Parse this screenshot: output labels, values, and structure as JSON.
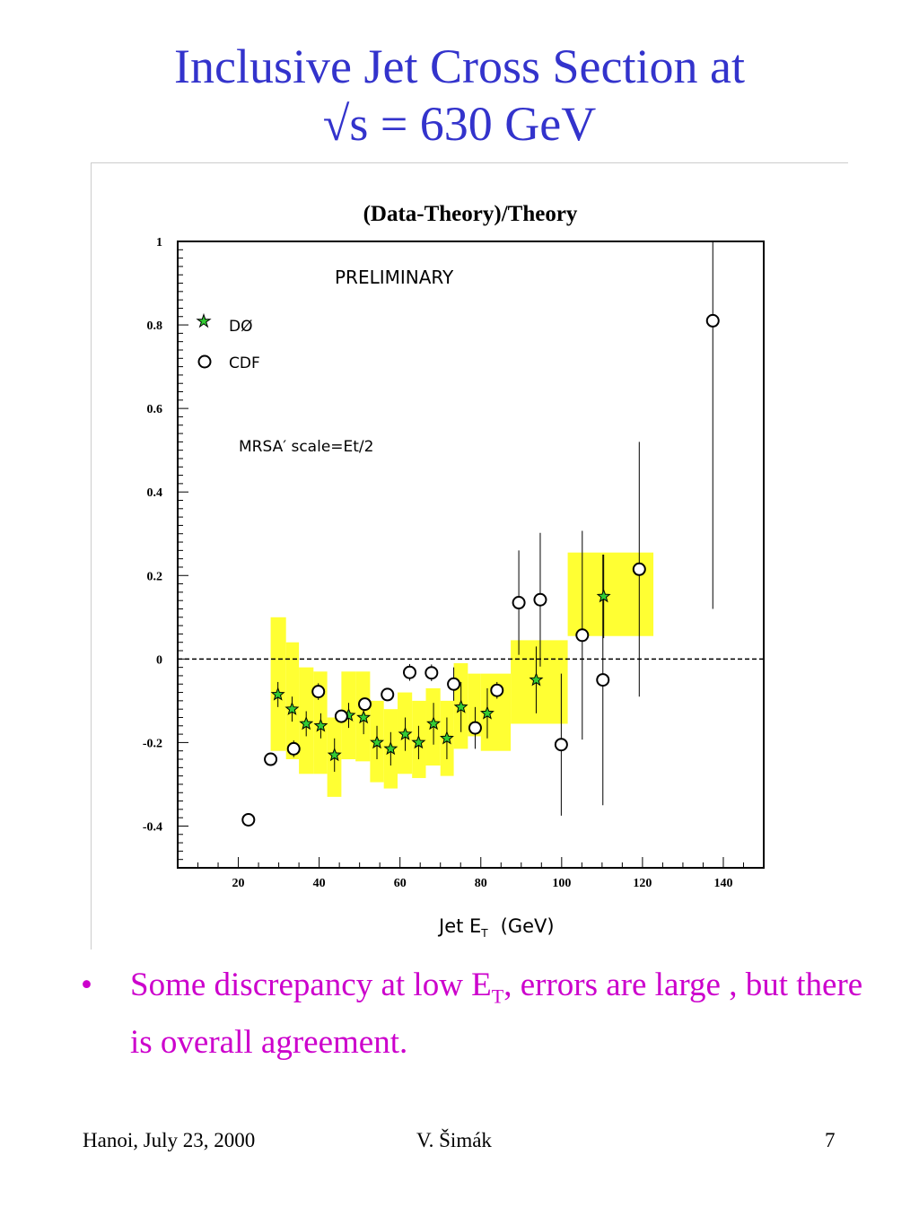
{
  "slide": {
    "title_line1": "Inclusive Jet Cross Section at",
    "title_line2": "√s = 630 GeV",
    "bullet_marker": "•",
    "bullet_text_a": "Some discrepancy at low E",
    "bullet_text_sub": "T",
    "bullet_text_b": ", errors are large , but there is overall agreement.",
    "footer_left": "Hanoi, July 23, 2000",
    "footer_center": "V. Šimák",
    "footer_right": "7"
  },
  "chart_data": {
    "type": "scatter",
    "title": "(Data-Theory)/Theory",
    "xlabel": "Jet E",
    "xlabel_sub": "T",
    "xlabel_unit": "(GeV)",
    "annotation_preliminary": "PRELIMINARY",
    "annotation_theory": "MRSA′ scale=Et/2",
    "xlim": [
      5,
      150
    ],
    "ylim": [
      -0.5,
      1.0
    ],
    "x_ticks": [
      20,
      40,
      60,
      80,
      100,
      120,
      140
    ],
    "y_ticks": [
      -0.4,
      -0.2,
      0,
      0.2,
      0.4,
      0.6,
      0.8,
      1
    ],
    "y_tick_labels": [
      "-0.4",
      "-0.2",
      "0",
      "0.2",
      "0.4",
      "0.6",
      "0.8",
      "1"
    ],
    "reference_line_y": 0,
    "legend_position": "top-left",
    "colors": {
      "band": "#ffff33",
      "d0": "#33cc33",
      "cdf": "#000000",
      "title": "#3333cc",
      "bullet": "#cc00cc"
    },
    "series": [
      {
        "name": "DØ",
        "marker": "star",
        "points": [
          {
            "x": 29.8,
            "y": -0.085,
            "err": 0.03
          },
          {
            "x": 33.3,
            "y": -0.12,
            "err": 0.03
          },
          {
            "x": 36.8,
            "y": -0.155,
            "err": 0.03
          },
          {
            "x": 40.4,
            "y": -0.16,
            "err": 0.03
          },
          {
            "x": 43.8,
            "y": -0.23,
            "err": 0.04
          },
          {
            "x": 47.3,
            "y": -0.135,
            "err": 0.03
          },
          {
            "x": 51.0,
            "y": -0.14,
            "err": 0.04
          },
          {
            "x": 54.3,
            "y": -0.2,
            "err": 0.04
          },
          {
            "x": 57.7,
            "y": -0.215,
            "err": 0.04
          },
          {
            "x": 61.3,
            "y": -0.18,
            "err": 0.04
          },
          {
            "x": 64.6,
            "y": -0.2,
            "err": 0.04
          },
          {
            "x": 68.3,
            "y": -0.155,
            "err": 0.05
          },
          {
            "x": 71.6,
            "y": -0.19,
            "err": 0.05
          },
          {
            "x": 75.1,
            "y": -0.115,
            "err": 0.06
          },
          {
            "x": 81.6,
            "y": -0.13,
            "err": 0.06
          },
          {
            "x": 93.7,
            "y": -0.05,
            "err": 0.08
          },
          {
            "x": 110.4,
            "y": 0.15,
            "err": 0.1
          }
        ],
        "bands": [
          {
            "x0": 28.0,
            "x1": 31.8,
            "ylo": -0.22,
            "yhi": 0.1
          },
          {
            "x0": 31.8,
            "x1": 35.0,
            "ylo": -0.24,
            "yhi": 0.04
          },
          {
            "x0": 35.0,
            "x1": 38.6,
            "ylo": -0.275,
            "yhi": -0.02
          },
          {
            "x0": 38.6,
            "x1": 42.0,
            "ylo": -0.275,
            "yhi": -0.03
          },
          {
            "x0": 42.0,
            "x1": 45.5,
            "ylo": -0.33,
            "yhi": -0.14
          },
          {
            "x0": 45.5,
            "x1": 49.0,
            "ylo": -0.24,
            "yhi": -0.03
          },
          {
            "x0": 49.0,
            "x1": 52.6,
            "ylo": -0.245,
            "yhi": -0.03
          },
          {
            "x0": 52.6,
            "x1": 56.0,
            "ylo": -0.295,
            "yhi": -0.1
          },
          {
            "x0": 56.0,
            "x1": 59.4,
            "ylo": -0.31,
            "yhi": -0.12
          },
          {
            "x0": 59.4,
            "x1": 63.0,
            "ylo": -0.275,
            "yhi": -0.08
          },
          {
            "x0": 63.0,
            "x1": 66.4,
            "ylo": -0.285,
            "yhi": -0.1
          },
          {
            "x0": 66.4,
            "x1": 70.0,
            "ylo": -0.255,
            "yhi": -0.07
          },
          {
            "x0": 70.0,
            "x1": 73.3,
            "ylo": -0.28,
            "yhi": -0.1
          },
          {
            "x0": 73.3,
            "x1": 76.8,
            "ylo": -0.215,
            "yhi": -0.01
          },
          {
            "x0": 76.8,
            "x1": 80.0,
            "ylo": -0.185,
            "yhi": -0.035
          },
          {
            "x0": 80.0,
            "x1": 87.4,
            "ylo": -0.22,
            "yhi": -0.035
          },
          {
            "x0": 87.4,
            "x1": 101.5,
            "ylo": -0.155,
            "yhi": 0.045
          },
          {
            "x0": 101.5,
            "x1": 122.7,
            "ylo": 0.055,
            "yhi": 0.255
          }
        ]
      },
      {
        "name": "CDF",
        "marker": "circle",
        "points": [
          {
            "x": 22.5,
            "y": -0.385,
            "err": 0.0
          },
          {
            "x": 28.0,
            "y": -0.24,
            "err": 0.0
          },
          {
            "x": 33.7,
            "y": -0.215,
            "err": 0.02
          },
          {
            "x": 39.8,
            "y": -0.078,
            "err": 0.02
          },
          {
            "x": 45.5,
            "y": -0.137,
            "err": 0.0
          },
          {
            "x": 51.3,
            "y": -0.108,
            "err": 0.0
          },
          {
            "x": 56.9,
            "y": -0.085,
            "err": 0.0
          },
          {
            "x": 62.4,
            "y": -0.032,
            "err": 0.02
          },
          {
            "x": 67.8,
            "y": -0.033,
            "err": 0.02
          },
          {
            "x": 73.3,
            "y": -0.06,
            "err": 0.04
          },
          {
            "x": 78.6,
            "y": -0.165,
            "err": 0.05
          },
          {
            "x": 84.0,
            "y": -0.075,
            "err": 0.02
          },
          {
            "x": 89.4,
            "y": 0.135,
            "err": 0.125
          },
          {
            "x": 94.7,
            "y": 0.142,
            "err": 0.16
          },
          {
            "x": 99.9,
            "y": -0.205,
            "err": 0.17
          },
          {
            "x": 105.1,
            "y": 0.057,
            "err": 0.25
          },
          {
            "x": 110.2,
            "y": -0.05,
            "err": 0.3
          },
          {
            "x": 119.2,
            "y": 0.215,
            "err": 0.305
          },
          {
            "x": 137.4,
            "y": 0.81,
            "err": 0.69
          }
        ]
      }
    ]
  }
}
